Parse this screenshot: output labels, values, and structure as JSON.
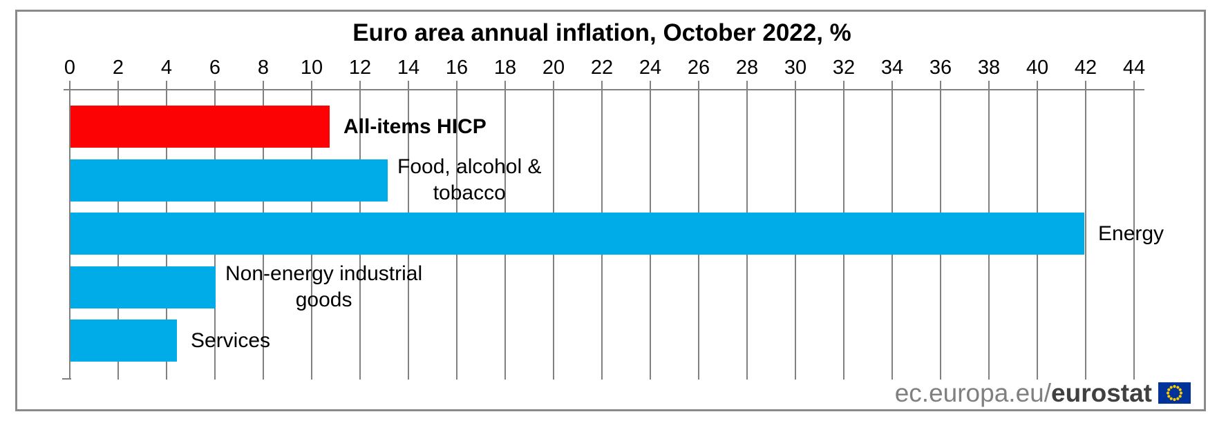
{
  "title": "Euro area annual inflation, October 2022, %",
  "chart_data": {
    "type": "bar",
    "orientation": "horizontal",
    "title": "Euro area annual inflation, October 2022, %",
    "xlabel": "",
    "ylabel": "",
    "xlim": [
      0,
      44
    ],
    "tick_step": 2,
    "axis_position": "top",
    "grid": true,
    "legend": "none",
    "categories": [
      "All-items HICP",
      "Food, alcohol & tobacco",
      "Energy",
      "Non-energy industrial goods",
      "Services"
    ],
    "values": [
      10.7,
      13.1,
      41.9,
      6.0,
      4.4
    ],
    "bars": [
      {
        "category": "All-items HICP",
        "label_lines": [
          "All-items HICP"
        ],
        "value": 10.7,
        "color": "#fc0204",
        "bold": true
      },
      {
        "category": "Food, alcohol & tobacco",
        "label_lines": [
          "Food, alcohol &",
          "tobacco"
        ],
        "value": 13.1,
        "color": "#00ace8",
        "bold": false
      },
      {
        "category": "Energy",
        "label_lines": [
          "Energy"
        ],
        "value": 41.9,
        "color": "#00ace8",
        "bold": false
      },
      {
        "category": "Non-energy industrial goods",
        "label_lines": [
          "Non-energy industrial",
          "goods"
        ],
        "value": 6.0,
        "color": "#00ace8",
        "bold": false
      },
      {
        "category": "Services",
        "label_lines": [
          "Services"
        ],
        "value": 4.4,
        "color": "#00ace8",
        "bold": false
      }
    ]
  },
  "footer": {
    "site_prefix": "ec.europa.eu/",
    "site_bold": "eurostat",
    "flag_icon": "eu-flag-icon"
  },
  "colors": {
    "bar_red": "#fc0204",
    "bar_blue": "#00ace8",
    "grid_gray": "#808080",
    "frame_gray": "#8a8a8a",
    "footer_gray": "#808080",
    "footer_dark": "#404040",
    "flag_blue": "#003399",
    "flag_stars": "#ffcc00"
  }
}
